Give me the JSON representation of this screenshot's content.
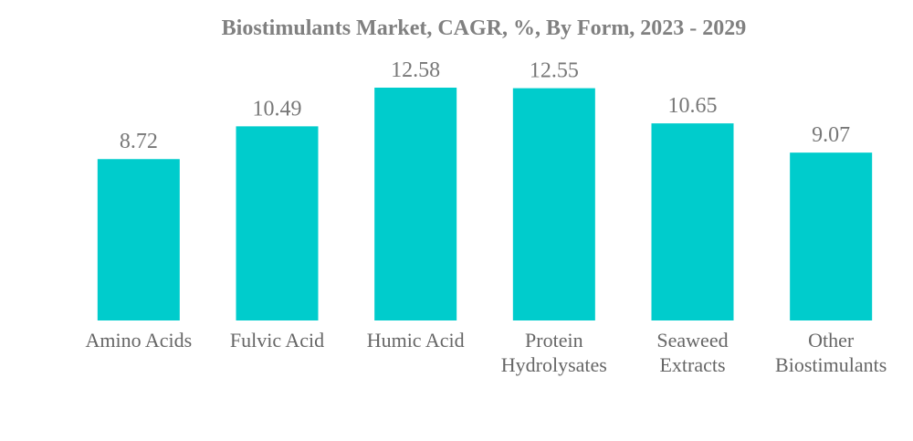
{
  "chart_data": {
    "type": "bar",
    "title": "Biostimulants Market, CAGR, %, By Form, 2023 - 2029",
    "categories": [
      "Amino Acids",
      "Fulvic Acid",
      "Humic Acid",
      "Protein\nHydrolysates",
      "Seaweed\nExtracts",
      "Other\nBiostimulants"
    ],
    "values": [
      8.72,
      10.49,
      12.58,
      12.55,
      10.65,
      9.07
    ],
    "color": "#00cccc"
  }
}
